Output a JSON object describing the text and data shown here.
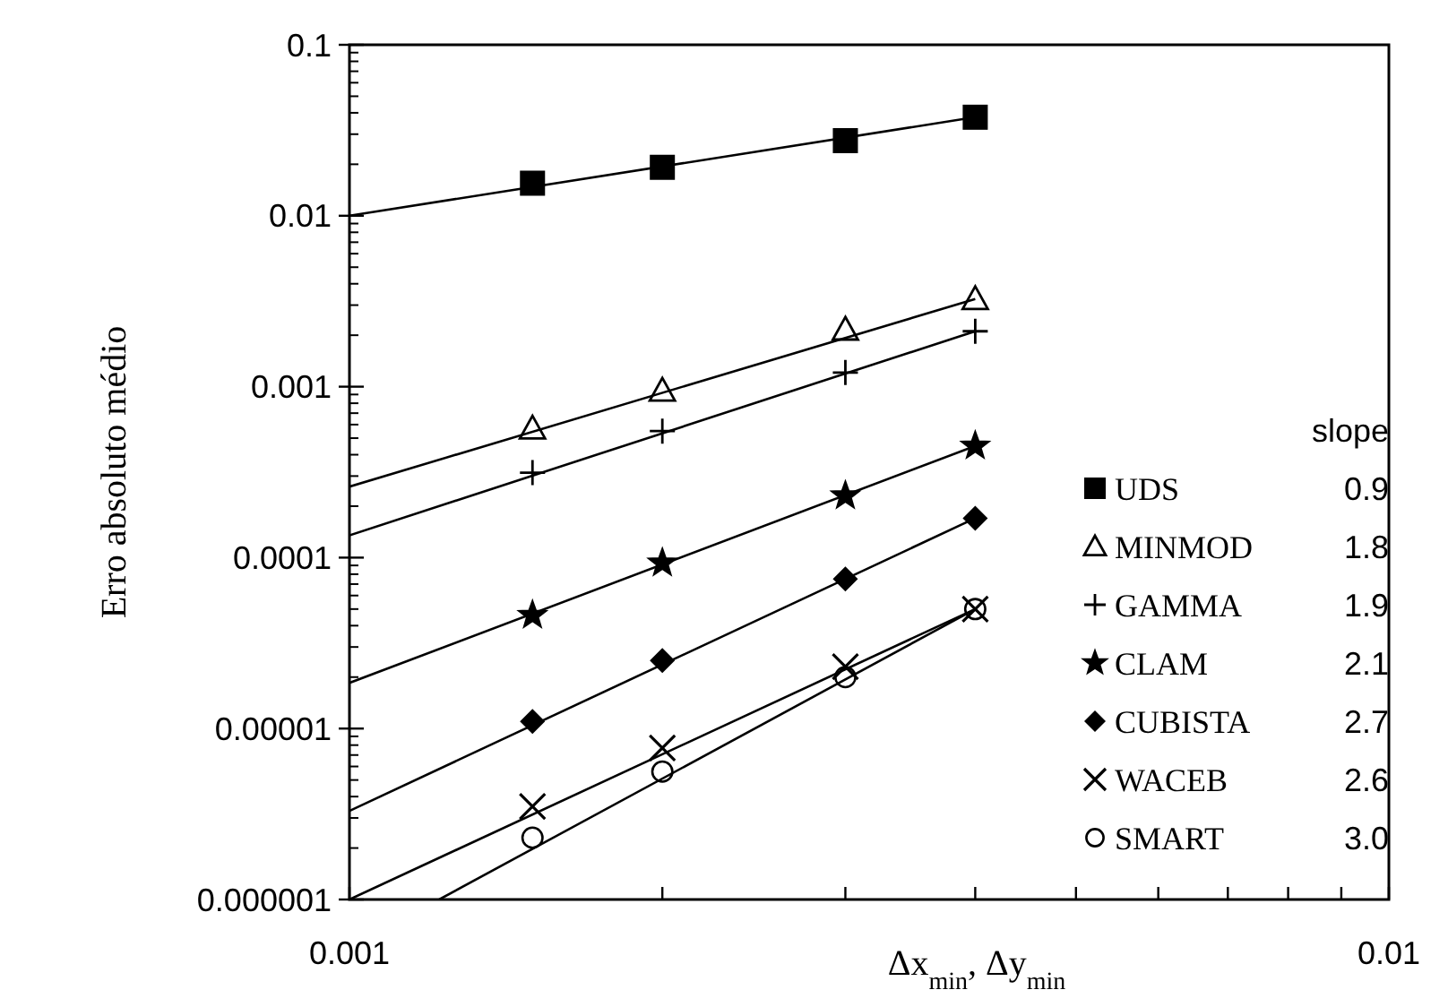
{
  "chart_data": {
    "type": "scatter",
    "xlabel": "Δx$_{min}$, Δy$_{min}$",
    "ylabel": "Erro absoluto médio",
    "legend_title": "slope",
    "log": "xy",
    "grid": false,
    "legend": "right",
    "xlim": [
      0.001,
      0.01
    ],
    "xticks": [
      {
        "value": 0.001,
        "label": "0.001"
      },
      {
        "value": 0.002,
        "label": null
      },
      {
        "value": 0.003,
        "label": null
      },
      {
        "value": 0.004,
        "label": null
      },
      {
        "value": 0.005,
        "label": null
      },
      {
        "value": 0.006,
        "label": null
      },
      {
        "value": 0.007,
        "label": null
      },
      {
        "value": 0.008,
        "label": null
      },
      {
        "value": 0.009,
        "label": null
      },
      {
        "value": 0.01,
        "label": "0.01"
      }
    ],
    "ylim": [
      1e-06,
      0.1
    ],
    "yticks": [
      {
        "value": 1e-06,
        "label": "0.000001"
      },
      {
        "value": 1e-05,
        "label": "0.00001"
      },
      {
        "value": 0.0001,
        "label": "0.0001"
      },
      {
        "value": 0.001,
        "label": "0.001"
      },
      {
        "value": 0.01,
        "label": "0.01"
      },
      {
        "value": 0.1,
        "label": "0.1"
      }
    ],
    "x": [
      0.0015,
      0.002,
      0.003,
      0.004
    ],
    "annotations": [
      "0.9",
      "1.8",
      "1.9",
      "2.1",
      "2.7",
      "2.6",
      "3.0"
    ],
    "series": [
      {
        "name": "UDS",
        "color": "#000000",
        "marker": "square",
        "values": [
          0.0155,
          0.0192,
          0.0275,
          0.0377
        ]
      },
      {
        "name": "MINMOD",
        "color": "#000000",
        "marker": "triangle",
        "values": [
          0.00057,
          0.00095,
          0.00216,
          0.00326
        ]
      },
      {
        "name": "GAMMA",
        "color": "#000000",
        "marker": "cross",
        "values": [
          0.000314,
          0.00055,
          0.00121,
          0.00211
        ]
      },
      {
        "name": "CLAM",
        "color": "#000000",
        "marker": "star",
        "values": [
          4.6e-05,
          9.3e-05,
          0.00023,
          0.00045
        ]
      },
      {
        "name": "CUBISTA",
        "color": "#000000",
        "marker": "diamond",
        "values": [
          1.1e-05,
          2.5e-05,
          7.5e-05,
          0.00017
        ]
      },
      {
        "name": "WACEB",
        "color": "#000000",
        "marker": "x",
        "values": [
          3.5e-06,
          7.7e-06,
          2.3e-05,
          5e-05
        ]
      },
      {
        "name": "SMART",
        "color": "#000000",
        "marker": "circle",
        "values": [
          2.3e-06,
          5.6e-06,
          2e-05,
          5e-05
        ]
      },
      {
        "type": "line",
        "color": "#000000",
        "marker": "none",
        "line_style": "solid",
        "x": [
          0.001,
          0.004
        ],
        "values": [
          0.01,
          0.0377
        ]
      },
      {
        "type": "line",
        "color": "#000000",
        "marker": "none",
        "line_style": "solid",
        "x": [
          0.001,
          0.004
        ],
        "values": [
          0.00026,
          0.00326
        ]
      },
      {
        "type": "line",
        "color": "#000000",
        "marker": "none",
        "line_style": "solid",
        "x": [
          0.001,
          0.004
        ],
        "values": [
          0.000135,
          0.00211
        ]
      },
      {
        "type": "line",
        "color": "#000000",
        "marker": "none",
        "line_style": "solid",
        "x": [
          0.001,
          0.004
        ],
        "values": [
          1.85e-05,
          0.00045
        ]
      },
      {
        "type": "line",
        "color": "#000000",
        "marker": "none",
        "line_style": "solid",
        "x": [
          0.001,
          0.004
        ],
        "values": [
          3.3e-06,
          0.00017
        ]
      },
      {
        "type": "line",
        "color": "#000000",
        "marker": "none",
        "line_style": "solid",
        "x": [
          0.001,
          0.004
        ],
        "values": [
          1e-06,
          5e-05
        ]
      },
      {
        "type": "line",
        "color": "#000000",
        "marker": "none",
        "line_style": "solid",
        "x": [
          0.00122,
          0.004
        ],
        "values": [
          1e-06,
          5e-05
        ]
      }
    ]
  }
}
